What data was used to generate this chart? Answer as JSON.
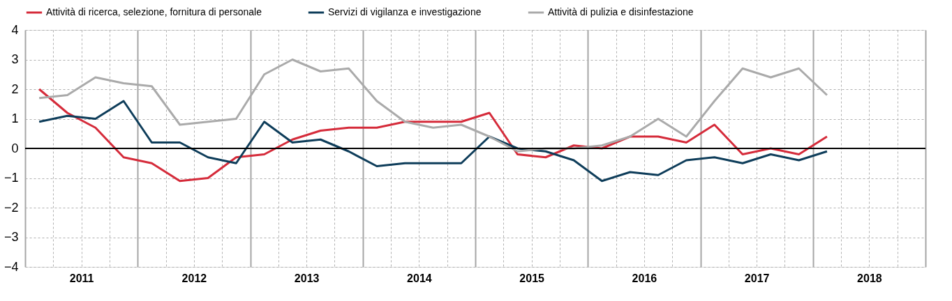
{
  "chart_data": {
    "type": "line",
    "x": [
      2011.125,
      2011.375,
      2011.625,
      2011.875,
      2012.125,
      2012.375,
      2012.625,
      2012.875,
      2013.125,
      2013.375,
      2013.625,
      2013.875,
      2014.125,
      2014.375,
      2014.625,
      2014.875,
      2015.125,
      2015.375,
      2015.625,
      2015.875,
      2016.125,
      2016.375,
      2016.625,
      2016.875,
      2017.125,
      2017.375,
      2017.625,
      2017.875,
      2018.125
    ],
    "series": [
      {
        "name": "Attività di ricerca, selezione, fornitura di personale",
        "color": "#d52b3a",
        "values": [
          2.0,
          1.2,
          0.7,
          -0.3,
          -0.5,
          -1.1,
          -1.0,
          -0.3,
          -0.2,
          0.3,
          0.6,
          0.7,
          0.7,
          0.9,
          0.9,
          0.9,
          1.2,
          -0.2,
          -0.3,
          0.1,
          0.0,
          0.4,
          0.4,
          0.2,
          0.8,
          -0.2,
          0.0,
          -0.2,
          0.4
        ]
      },
      {
        "name": "Servizi di vigilanza e investigazione",
        "color": "#0e3d5a",
        "values": [
          0.9,
          1.1,
          1.0,
          1.6,
          0.2,
          0.2,
          -0.3,
          -0.5,
          0.9,
          0.2,
          0.3,
          -0.1,
          -0.6,
          -0.5,
          -0.5,
          -0.5,
          0.4,
          0.0,
          -0.1,
          -0.4,
          -1.1,
          -0.8,
          -0.9,
          -0.4,
          -0.3,
          -0.5,
          -0.2,
          -0.4,
          -0.1
        ]
      },
      {
        "name": "Attività di pulizia e disinfestazione",
        "color": "#aaaaaa",
        "values": [
          1.7,
          1.8,
          2.4,
          2.2,
          2.1,
          0.8,
          0.9,
          1.0,
          2.5,
          3.0,
          2.6,
          2.7,
          1.6,
          0.9,
          0.7,
          0.8,
          0.4,
          -0.1,
          0.0,
          0.0,
          0.1,
          0.4,
          1.0,
          0.4,
          1.6,
          2.7,
          2.4,
          2.7,
          1.8
        ]
      }
    ],
    "xlim": [
      2011,
      2019
    ],
    "xticks": [
      {
        "value": 2011,
        "label": null
      },
      {
        "value": 2011.25,
        "label": null
      },
      {
        "value": 2011.5,
        "label": "2011"
      },
      {
        "value": 2011.75,
        "label": null
      },
      {
        "value": 2012,
        "label": null
      },
      {
        "value": 2012.25,
        "label": null
      },
      {
        "value": 2012.5,
        "label": "2012"
      },
      {
        "value": 2012.75,
        "label": null
      },
      {
        "value": 2013,
        "label": null
      },
      {
        "value": 2013.25,
        "label": null
      },
      {
        "value": 2013.5,
        "label": "2013"
      },
      {
        "value": 2013.75,
        "label": null
      },
      {
        "value": 2014,
        "label": null
      },
      {
        "value": 2014.25,
        "label": null
      },
      {
        "value": 2014.5,
        "label": "2014"
      },
      {
        "value": 2014.75,
        "label": null
      },
      {
        "value": 2015,
        "label": null
      },
      {
        "value": 2015.25,
        "label": null
      },
      {
        "value": 2015.5,
        "label": "2015"
      },
      {
        "value": 2015.75,
        "label": null
      },
      {
        "value": 2016,
        "label": null
      },
      {
        "value": 2016.25,
        "label": null
      },
      {
        "value": 2016.5,
        "label": "2016"
      },
      {
        "value": 2016.75,
        "label": null
      },
      {
        "value": 2017,
        "label": null
      },
      {
        "value": 2017.25,
        "label": null
      },
      {
        "value": 2017.5,
        "label": "2017"
      },
      {
        "value": 2017.75,
        "label": null
      },
      {
        "value": 2018,
        "label": null
      },
      {
        "value": 2018.25,
        "label": null
      },
      {
        "value": 2018.5,
        "label": "2018"
      },
      {
        "value": 2018.75,
        "label": null
      },
      {
        "value": 2019,
        "label": null
      }
    ],
    "ylim": [
      -4,
      4
    ],
    "yticks": [
      -4,
      -3,
      -2,
      -1,
      0,
      1,
      2,
      3,
      4
    ],
    "grid": true,
    "legend": "top",
    "line_style": "solid",
    "marker": "none",
    "ref_lines": [
      {
        "axis": "y",
        "value": 0,
        "label": null,
        "color": "#000000"
      }
    ]
  }
}
